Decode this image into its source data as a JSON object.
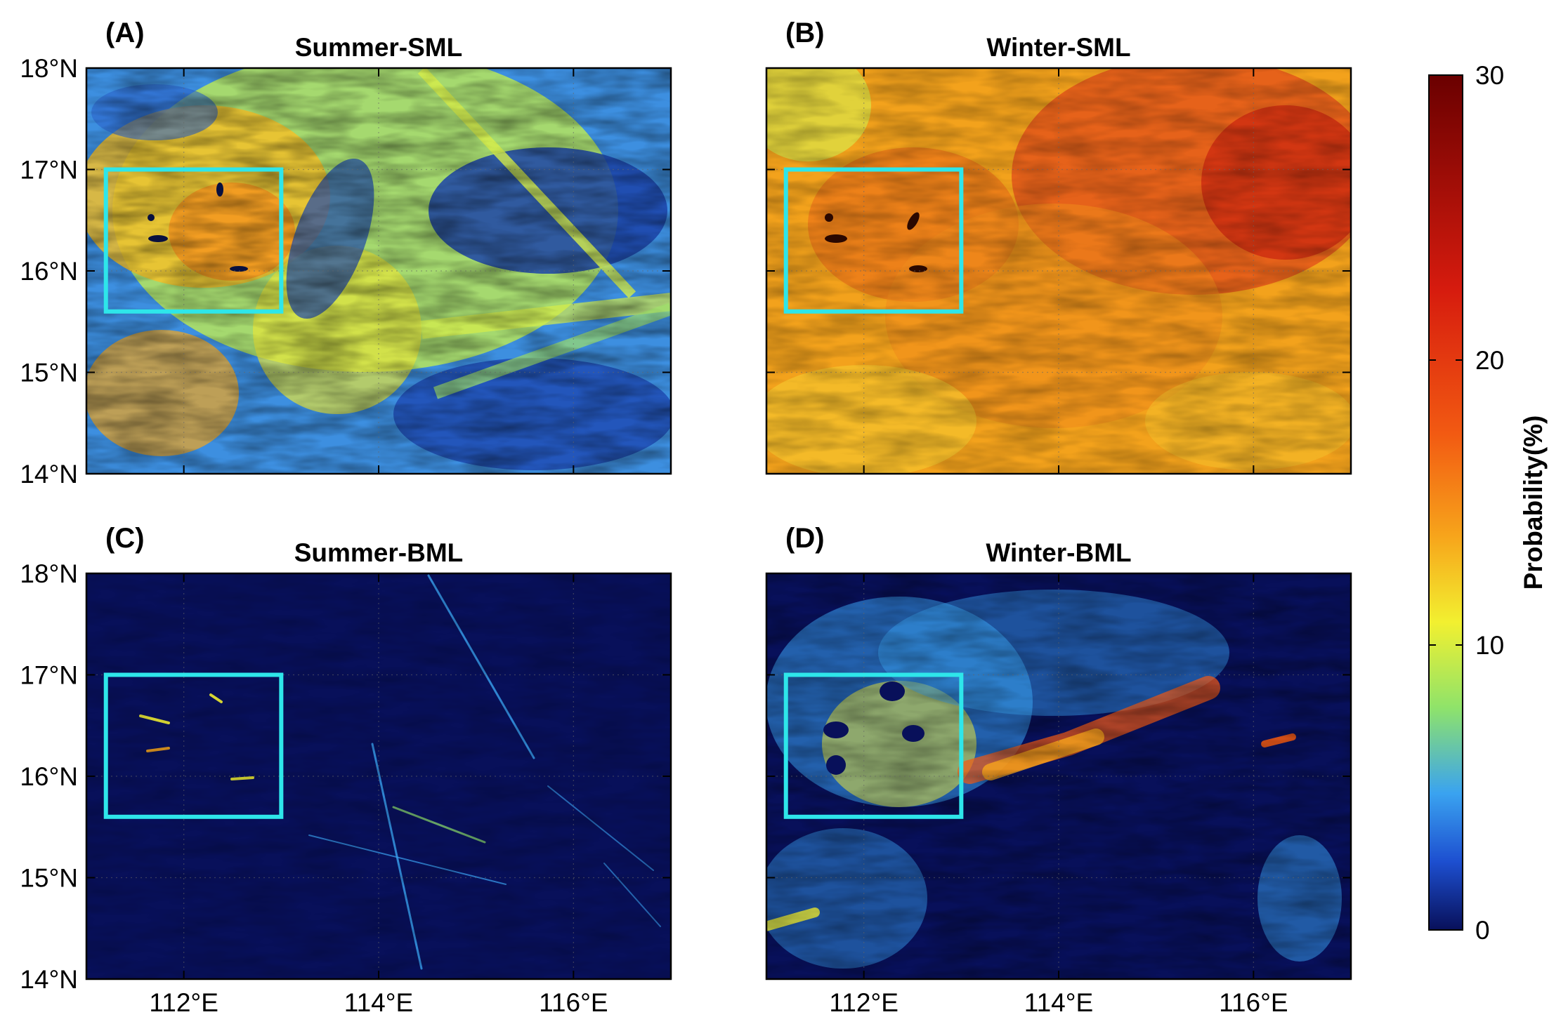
{
  "chart_data": {
    "type": "heatmap",
    "colorbar": {
      "label": "Probability(%)",
      "range": [
        0,
        30
      ],
      "ticks": [
        "0",
        "10",
        "20",
        "30"
      ],
      "tick_values": [
        0,
        10,
        20,
        30
      ],
      "colormap": [
        "#08105a",
        "#1d4fd0",
        "#3aa3f0",
        "#8fe36a",
        "#f2f030",
        "#f7a51b",
        "#f25a12",
        "#d61b0e",
        "#6a0000"
      ]
    },
    "axes": {
      "x_ticks": [
        "112°E",
        "114°E",
        "116°E"
      ],
      "x_tick_values": [
        112,
        114,
        116
      ],
      "y_ticks": [
        "14°N",
        "15°N",
        "16°N",
        "17°N",
        "18°N"
      ],
      "y_tick_values": [
        14,
        15,
        16,
        17,
        18
      ],
      "xlim": [
        111,
        117
      ],
      "ylim": [
        14,
        18
      ]
    },
    "study_box": {
      "lon": [
        111.2,
        113
      ],
      "lat": [
        15.6,
        17
      ]
    },
    "panels": [
      {
        "letter": "(A)",
        "title": "Summer-SML",
        "mean_probability": 4.5
      },
      {
        "letter": "(B)",
        "title": "Winter-SML",
        "mean_probability": 11
      },
      {
        "letter": "(C)",
        "title": "Summer-BML",
        "mean_probability": 0.5
      },
      {
        "letter": "(D)",
        "title": "Winter-BML",
        "mean_probability": 3
      }
    ]
  }
}
